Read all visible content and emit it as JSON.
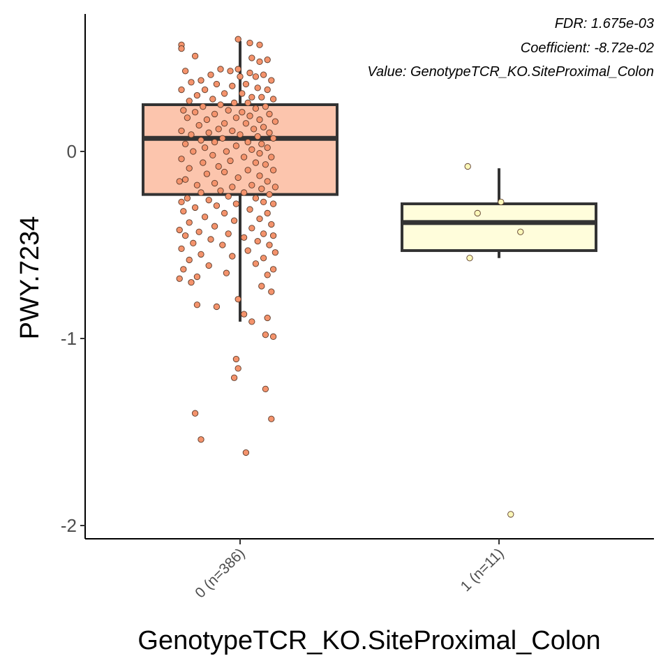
{
  "chart_data": {
    "type": "box",
    "xlabel": "GenotypeTCR_KO.SiteProximal_Colon",
    "ylabel": "PWY.7234",
    "ylim": [
      -2.07,
      0.72
    ],
    "yticks": [
      0,
      -1,
      -2
    ],
    "ytick_labels": [
      "0",
      "-1",
      "-2"
    ],
    "categories": [
      "0 (n=386)",
      "1 (n=11)"
    ],
    "annotations": [
      "FDR: 1.675e-03",
      "Coefficient: -8.72e-02",
      "Value: GenotypeTCR_KO.SiteProximal_Colon"
    ],
    "grid": false,
    "boxes": [
      {
        "category": "0 (n=386)",
        "fill": "#fcc5ad",
        "point_color": "#f4936c",
        "q1": -0.23,
        "median": 0.07,
        "q3": 0.25,
        "whisker_low": -0.91,
        "whisker_high": 0.59
      },
      {
        "category": "1 (n=11)",
        "fill": "#fffddb",
        "point_color": "#fbf7b8",
        "q1": -0.53,
        "median": -0.38,
        "q3": -0.28,
        "whisker_low": -0.57,
        "whisker_high": -0.09
      }
    ],
    "points": [
      [
        [
          -0.01,
          0.6
        ],
        [
          -0.3,
          0.57
        ],
        [
          0.05,
          0.58
        ],
        [
          0.1,
          0.57
        ],
        [
          -0.3,
          0.55
        ],
        [
          0.06,
          0.5
        ],
        [
          0.1,
          0.48
        ],
        [
          -0.23,
          0.51
        ],
        [
          0.14,
          0.49
        ],
        [
          -0.01,
          0.44
        ],
        [
          -0.1,
          0.44
        ],
        [
          -0.05,
          0.43
        ],
        [
          0.05,
          0.42
        ],
        [
          0.12,
          0.41
        ],
        [
          -0.28,
          0.43
        ],
        [
          -0.15,
          0.41
        ],
        [
          0.0,
          0.4
        ],
        [
          0.08,
          0.4
        ],
        [
          -0.2,
          0.38
        ],
        [
          0.16,
          0.38
        ],
        [
          -0.25,
          0.37
        ],
        [
          -0.12,
          0.36
        ],
        [
          -0.04,
          0.35
        ],
        [
          0.03,
          0.36
        ],
        [
          0.09,
          0.34
        ],
        [
          -0.3,
          0.33
        ],
        [
          -0.18,
          0.33
        ],
        [
          0.14,
          0.33
        ],
        [
          -0.08,
          0.31
        ],
        [
          0.01,
          0.31
        ],
        [
          -0.22,
          0.3
        ],
        [
          0.06,
          0.29
        ],
        [
          0.11,
          0.29
        ],
        [
          -0.14,
          0.28
        ],
        [
          -0.26,
          0.27
        ],
        [
          0.17,
          0.28
        ],
        [
          -0.03,
          0.26
        ],
        [
          0.04,
          0.26
        ],
        [
          -0.1,
          0.25
        ],
        [
          -0.19,
          0.24
        ],
        [
          0.13,
          0.24
        ],
        [
          0.08,
          0.23
        ],
        [
          -0.29,
          0.22
        ],
        [
          -0.06,
          0.22
        ],
        [
          0.01,
          0.21
        ],
        [
          -0.23,
          0.21
        ],
        [
          0.15,
          0.2
        ],
        [
          -0.13,
          0.2
        ],
        [
          0.05,
          0.19
        ],
        [
          -0.02,
          0.18
        ],
        [
          -0.27,
          0.18
        ],
        [
          0.1,
          0.17
        ],
        [
          -0.17,
          0.17
        ],
        [
          0.18,
          0.16
        ],
        [
          -0.08,
          0.15
        ],
        [
          0.03,
          0.15
        ],
        [
          -0.21,
          0.14
        ],
        [
          0.12,
          0.13
        ],
        [
          -0.11,
          0.12
        ],
        [
          0.07,
          0.12
        ],
        [
          -0.3,
          0.11
        ],
        [
          -0.04,
          0.11
        ],
        [
          0.15,
          0.1
        ],
        [
          -0.16,
          0.1
        ],
        [
          0.0,
          0.09
        ],
        [
          -0.25,
          0.09
        ],
        [
          0.09,
          0.08
        ],
        [
          -0.09,
          0.07
        ],
        [
          0.17,
          0.07
        ],
        [
          -0.2,
          0.06
        ],
        [
          0.04,
          0.05
        ],
        [
          -0.13,
          0.05
        ],
        [
          0.11,
          0.04
        ],
        [
          -0.28,
          0.04
        ],
        [
          -0.02,
          0.03
        ],
        [
          0.14,
          0.02
        ],
        [
          -0.18,
          0.02
        ],
        [
          0.06,
          0.01
        ],
        [
          -0.07,
          0.0
        ],
        [
          -0.24,
          0.0
        ],
        [
          0.1,
          -0.01
        ],
        [
          -0.14,
          -0.02
        ],
        [
          0.02,
          -0.03
        ],
        [
          0.16,
          -0.03
        ],
        [
          -0.3,
          -0.04
        ],
        [
          -0.05,
          -0.05
        ],
        [
          0.08,
          -0.06
        ],
        [
          -0.19,
          -0.06
        ],
        [
          0.13,
          -0.07
        ],
        [
          -0.11,
          -0.08
        ],
        [
          -0.26,
          -0.09
        ],
        [
          0.04,
          -0.1
        ],
        [
          0.17,
          -0.1
        ],
        [
          -0.08,
          -0.11
        ],
        [
          -0.17,
          -0.12
        ],
        [
          0.1,
          -0.13
        ],
        [
          -0.01,
          -0.14
        ],
        [
          -0.28,
          -0.15
        ],
        [
          0.14,
          -0.16
        ],
        [
          -0.13,
          -0.17
        ],
        [
          0.06,
          -0.18
        ],
        [
          -0.22,
          -0.18
        ],
        [
          -0.04,
          -0.19
        ],
        [
          0.11,
          -0.2
        ],
        [
          -0.31,
          -0.16
        ],
        [
          0.18,
          -0.19
        ],
        [
          -0.1,
          -0.21
        ],
        [
          0.02,
          -0.22
        ],
        [
          -0.2,
          -0.22
        ],
        [
          0.15,
          -0.23
        ],
        [
          -0.27,
          -0.25
        ],
        [
          -0.06,
          -0.24
        ],
        [
          0.08,
          -0.25
        ],
        [
          -0.16,
          -0.26
        ],
        [
          0.12,
          -0.27
        ],
        [
          -0.3,
          -0.27
        ],
        [
          -0.02,
          -0.28
        ],
        [
          0.17,
          -0.28
        ],
        [
          -0.12,
          -0.29
        ],
        [
          -0.23,
          -0.3
        ],
        [
          0.05,
          -0.31
        ],
        [
          -0.29,
          -0.32
        ],
        [
          -0.08,
          -0.33
        ],
        [
          0.14,
          -0.33
        ],
        [
          -0.18,
          -0.35
        ],
        [
          0.1,
          -0.36
        ],
        [
          -0.03,
          -0.37
        ],
        [
          -0.26,
          -0.38
        ],
        [
          0.16,
          -0.39
        ],
        [
          -0.13,
          -0.4
        ],
        [
          0.06,
          -0.41
        ],
        [
          -0.31,
          -0.42
        ],
        [
          -0.21,
          -0.43
        ],
        [
          0.12,
          -0.44
        ],
        [
          -0.06,
          -0.44
        ],
        [
          -0.28,
          -0.45
        ],
        [
          0.17,
          -0.45
        ],
        [
          0.02,
          -0.46
        ],
        [
          -0.15,
          -0.47
        ],
        [
          0.09,
          -0.48
        ],
        [
          -0.24,
          -0.49
        ],
        [
          0.15,
          -0.5
        ],
        [
          -0.09,
          -0.5
        ],
        [
          -0.3,
          -0.52
        ],
        [
          0.04,
          -0.53
        ],
        [
          0.18,
          -0.54
        ],
        [
          -0.2,
          -0.55
        ],
        [
          -0.04,
          -0.56
        ],
        [
          0.12,
          -0.57
        ],
        [
          -0.26,
          -0.58
        ],
        [
          0.08,
          -0.6
        ],
        [
          -0.16,
          -0.61
        ],
        [
          -0.29,
          -0.63
        ],
        [
          0.17,
          -0.63
        ],
        [
          -0.07,
          -0.65
        ],
        [
          -0.22,
          -0.67
        ],
        [
          0.14,
          -0.66
        ],
        [
          -0.31,
          -0.68
        ],
        [
          0.11,
          -0.72
        ],
        [
          -0.25,
          -0.7
        ],
        [
          0.16,
          -0.75
        ],
        [
          -0.01,
          -0.79
        ],
        [
          -0.12,
          -0.83
        ],
        [
          -0.22,
          -0.82
        ],
        [
          0.02,
          -0.87
        ],
        [
          0.14,
          -0.89
        ],
        [
          0.06,
          -0.91
        ],
        [
          0.13,
          -0.98
        ],
        [
          0.17,
          -0.99
        ],
        [
          -0.02,
          -1.11
        ],
        [
          -0.01,
          -1.16
        ],
        [
          -0.03,
          -1.21
        ],
        [
          0.13,
          -1.27
        ],
        [
          -0.23,
          -1.4
        ],
        [
          0.16,
          -1.43
        ],
        [
          -0.2,
          -1.54
        ],
        [
          0.03,
          -1.61
        ]
      ],
      [
        [
          -0.16,
          -0.08
        ],
        [
          0.01,
          -0.27
        ],
        [
          -0.11,
          -0.33
        ],
        [
          0.11,
          -0.43
        ],
        [
          -0.15,
          -0.57
        ],
        [
          0.06,
          -1.94
        ]
      ]
    ]
  }
}
